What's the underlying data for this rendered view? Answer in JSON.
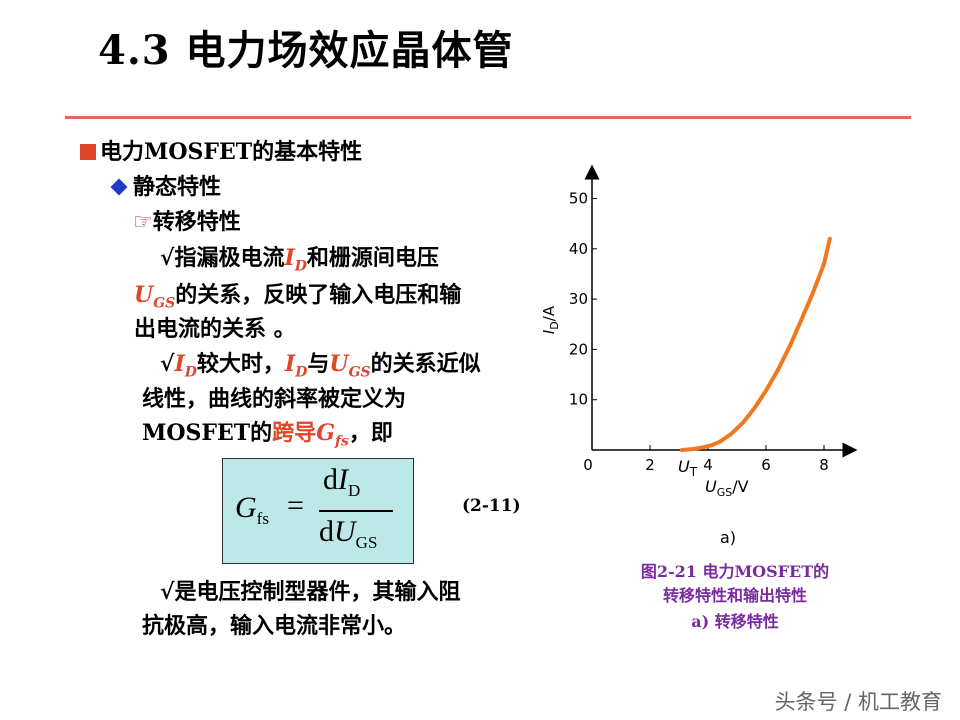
{
  "title": "4.3 电力场效应晶体管",
  "heading": "电力MOSFET的基本特性",
  "sub_heading": "静态特性",
  "transfer_label": "转移特性",
  "para1": {
    "prefix": "√指漏极电流",
    "id_sym": "I",
    "id_sub": "D",
    "text_a": "和栅源间电压",
    "ugs_sym": "U",
    "ugs_sub": "GS",
    "text_b": "的关系，反映了输入电压和输",
    "text_c": "出电流的关系 。"
  },
  "para2": {
    "check": "√",
    "id_sym": "I",
    "id_sub": "D",
    "text_a": "较大时，",
    "text_b": "与",
    "ugs_sym": "U",
    "ugs_sub": "GS",
    "text_c": "的关系近似",
    "text_d": "线性，曲线的斜率被定义为",
    "mosfet": "MOSFET的",
    "kuadao": "跨导",
    "g_sym": "G",
    "g_sub": "fs",
    "text_e": "，即"
  },
  "formula": {
    "lhs": "G",
    "lhs_sub": "fs",
    "eq": "=",
    "num_d": "d",
    "num_i": "I",
    "num_sub": "D",
    "den_d": "d",
    "den_u": "U",
    "den_sub": "GS"
  },
  "equation_number": "(2-11)",
  "para3": {
    "line1": "√是电压控制型器件，其输入阻",
    "line2": "抗极高，输入电流非常小。"
  },
  "chart_data": {
    "type": "line",
    "ylabel_sym": "I",
    "ylabel_sub": "D",
    "ylabel_unit": "/A",
    "xlabel_sym": "U",
    "xlabel_sub": "GS",
    "xlabel_unit": "/V",
    "ut_sym": "U",
    "ut_sub": "T",
    "panel_label": "a)",
    "x_ticks": [
      0,
      2,
      4,
      6,
      8
    ],
    "y_ticks": [
      10,
      20,
      30,
      40,
      50
    ],
    "xlim": [
      0,
      8.6
    ],
    "ylim": [
      0,
      52
    ],
    "series": [
      {
        "color": "#f07820",
        "x": [
          3.1,
          3.5,
          3.8,
          4.1,
          4.4,
          4.8,
          5.2,
          5.6,
          6.0,
          6.4,
          6.8,
          7.2,
          7.6,
          8.0,
          8.2
        ],
        "y": [
          0,
          0.2,
          0.5,
          0.9,
          1.6,
          3.2,
          5.4,
          8.3,
          11.8,
          15.8,
          20.4,
          25.6,
          31.0,
          37.0,
          42.0
        ]
      }
    ]
  },
  "caption": {
    "line1": "图2-21 电力MOSFET的",
    "line2": "转移特性和输出特性",
    "line3": "a) 转移特性"
  },
  "watermark": "头条号 / 机工教育"
}
